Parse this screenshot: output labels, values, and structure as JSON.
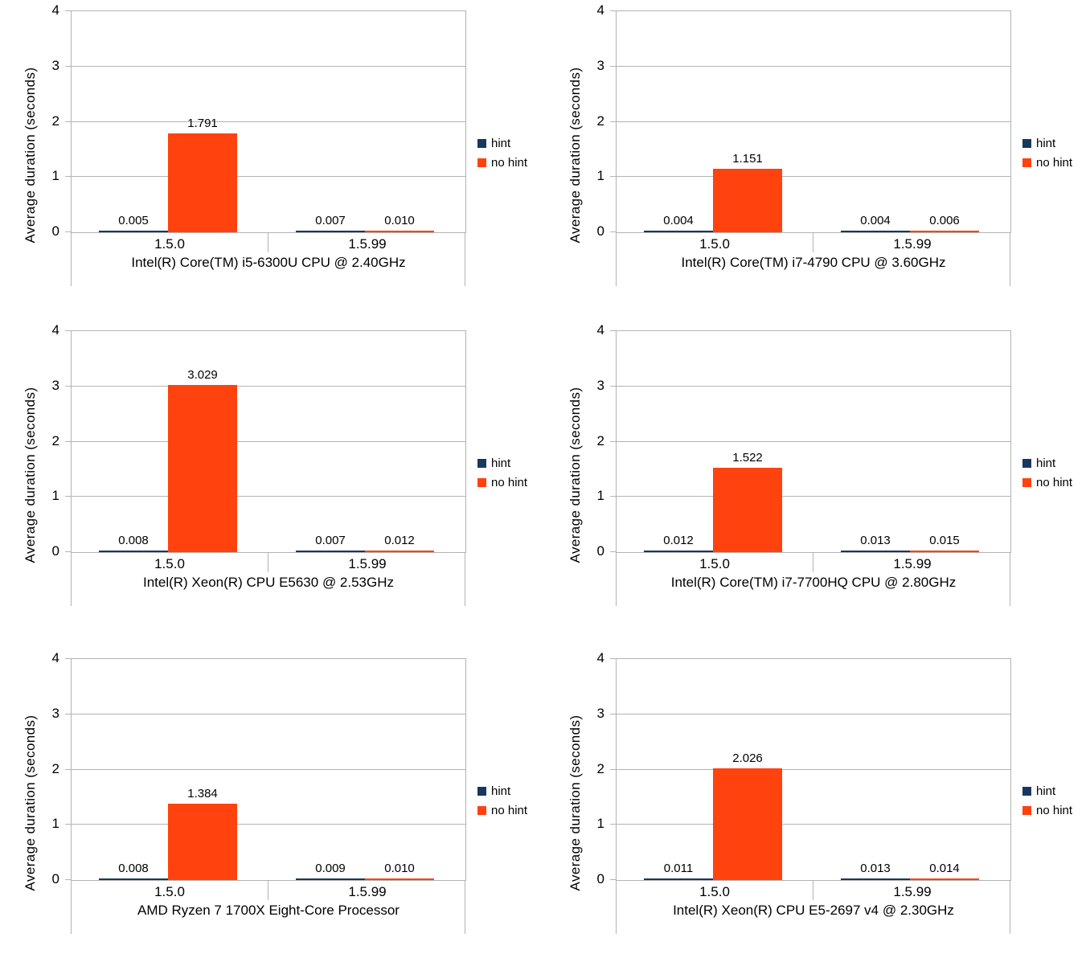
{
  "page": {
    "background": "#ffffff"
  },
  "chart_data": {
    "type": "bar",
    "layout": "3 rows x 2 columns of identical grouped bar charts",
    "ylabel": "Average duration (seconds)",
    "ylim": [
      0,
      4
    ],
    "yticks": [
      0,
      1,
      2,
      3,
      4
    ],
    "grid": "horizontal gridlines on",
    "legend_position": "right-center",
    "categories": [
      "1.5.0",
      "1.5.99"
    ],
    "series_meta": [
      {
        "name": "hint",
        "color": "#17375E"
      },
      {
        "name": "no hint",
        "color": "#FF420E"
      }
    ],
    "colors": {
      "grid": "#B3B3B3",
      "axis": "#B3B3B3",
      "text": "#000000",
      "background": "#FFFFFF"
    },
    "charts": [
      {
        "xlabel": "Intel(R) Core(TM) i5-6300U CPU @ 2.40GHz",
        "series": [
          {
            "name": "hint",
            "values": [
              0.005,
              0.007
            ],
            "value_labels": [
              "0.005",
              "0.007"
            ]
          },
          {
            "name": "no hint",
            "values": [
              1.791,
              0.01
            ],
            "value_labels": [
              "1.791",
              "0.010"
            ]
          }
        ]
      },
      {
        "xlabel": "Intel(R) Core(TM) i7-4790 CPU @ 3.60GHz",
        "series": [
          {
            "name": "hint",
            "values": [
              0.004,
              0.004
            ],
            "value_labels": [
              "0.004",
              "0.004"
            ]
          },
          {
            "name": "no hint",
            "values": [
              1.151,
              0.006
            ],
            "value_labels": [
              "1.151",
              "0.006"
            ]
          }
        ]
      },
      {
        "xlabel": "Intel(R) Xeon(R) CPU E5630 @ 2.53GHz",
        "series": [
          {
            "name": "hint",
            "values": [
              0.008,
              0.007
            ],
            "value_labels": [
              "0.008",
              "0.007"
            ]
          },
          {
            "name": "no hint",
            "values": [
              3.029,
              0.012
            ],
            "value_labels": [
              "3.029",
              "0.012"
            ]
          }
        ]
      },
      {
        "xlabel": "Intel(R) Core(TM) i7-7700HQ CPU @ 2.80GHz",
        "series": [
          {
            "name": "hint",
            "values": [
              0.012,
              0.013
            ],
            "value_labels": [
              "0.012",
              "0.013"
            ]
          },
          {
            "name": "no hint",
            "values": [
              1.522,
              0.015
            ],
            "value_labels": [
              "1.522",
              "0.015"
            ]
          }
        ]
      },
      {
        "xlabel": "AMD Ryzen 7 1700X Eight-Core Processor",
        "series": [
          {
            "name": "hint",
            "values": [
              0.008,
              0.009
            ],
            "value_labels": [
              "0.008",
              "0.009"
            ]
          },
          {
            "name": "no hint",
            "values": [
              1.384,
              0.01
            ],
            "value_labels": [
              "1.384",
              "0.010"
            ]
          }
        ]
      },
      {
        "xlabel": "Intel(R) Xeon(R) CPU E5-2697 v4 @ 2.30GHz",
        "series": [
          {
            "name": "hint",
            "values": [
              0.011,
              0.013
            ],
            "value_labels": [
              "0.011",
              "0.013"
            ]
          },
          {
            "name": "no hint",
            "values": [
              2.026,
              0.014
            ],
            "value_labels": [
              "2.026",
              "0.014"
            ]
          }
        ]
      }
    ]
  }
}
